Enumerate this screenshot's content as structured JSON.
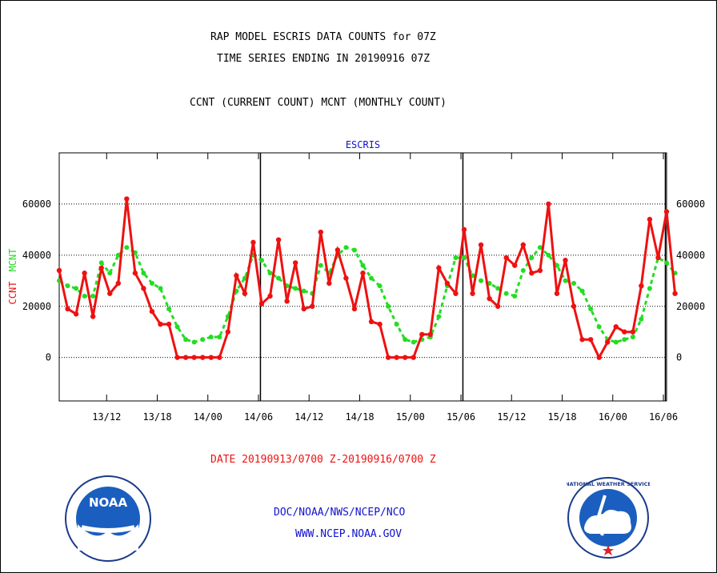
{
  "header": {
    "title_line1": "RAP MODEL ESCRIS DATA COUNTS for 07Z",
    "title_line2": "TIME SERIES ENDING IN 20190916 07Z",
    "subtitle": "CCNT (CURRENT COUNT) MCNT (MONTHLY COUNT)"
  },
  "footer": {
    "date_range": "DATE 20190913/0700 Z-20190916/0700 Z",
    "org_line": "DOC/NOAA/NWS/NCEP/NCO",
    "website": "WWW.NCEP.NOAA.GOV",
    "noaa_logo_text": "NOAA",
    "nws_logo_text": "NATIONAL WEATHER SERVICE"
  },
  "colors": {
    "ccnt": "#ee1111",
    "mcnt": "#22dd22",
    "title_blue": "#1111cc",
    "grid": "#000000"
  },
  "chart_data": {
    "type": "line",
    "title": "ESCRIS",
    "ylabel_ccnt": "CCNT",
    "ylabel_mcnt": "MCNT",
    "ylim": [
      -17000,
      80000
    ],
    "yticks": [
      0,
      20000,
      40000,
      60000
    ],
    "ytick_labels": [
      "0",
      "20000",
      "40000",
      "60000"
    ],
    "xlim": [
      0,
      72
    ],
    "xticks": [
      6,
      12,
      18,
      24,
      30,
      36,
      42,
      48,
      54,
      60,
      66,
      72
    ],
    "xtick_labels": [
      "13/12",
      "13/18",
      "14/00",
      "14/06",
      "14/12",
      "14/18",
      "15/00",
      "15/06",
      "15/12",
      "15/18",
      "16/00",
      "16/06"
    ],
    "day_boundaries": [
      23,
      47,
      71
    ],
    "x_note": "hours since 20190913/0700 Z",
    "series": [
      {
        "name": "CCNT",
        "values": [
          34000,
          19000,
          17000,
          33000,
          16000,
          35000,
          25000,
          29000,
          62000,
          33000,
          27000,
          18000,
          13000,
          13000,
          0,
          0,
          0,
          0,
          0,
          0,
          10000,
          32000,
          25000,
          45000,
          21000,
          24000,
          46000,
          22000,
          37000,
          19000,
          20000,
          49000,
          29000,
          42000,
          31000,
          19000,
          33000,
          14000,
          13000,
          0,
          0,
          0,
          0,
          9000,
          9000,
          35000,
          29000,
          25000,
          50000,
          25000,
          44000,
          23000,
          20000,
          39000,
          36000,
          44000,
          33000,
          34000,
          60000,
          25000,
          38000,
          20000,
          7000,
          7000,
          0,
          6000,
          12000,
          10000,
          10000,
          28000,
          54000,
          39000,
          57000,
          25000
        ]
      },
      {
        "name": "MCNT",
        "values": [
          30000,
          28000,
          27000,
          24000,
          24000,
          37000,
          33000,
          40000,
          43000,
          41000,
          33000,
          29000,
          27000,
          19000,
          12000,
          7000,
          6000,
          7000,
          8000,
          8000,
          16000,
          26000,
          31000,
          40000,
          38000,
          33000,
          31000,
          28000,
          27000,
          26000,
          25000,
          36000,
          33000,
          40000,
          43000,
          42000,
          36000,
          31000,
          28000,
          20000,
          13000,
          7000,
          6000,
          7000,
          8000,
          16000,
          28000,
          39000,
          39000,
          32000,
          30000,
          29000,
          27000,
          25000,
          24000,
          34000,
          39000,
          43000,
          40000,
          36000,
          30000,
          29000,
          26000,
          19000,
          12000,
          7000,
          6000,
          7000,
          8000,
          15000,
          27000,
          39000,
          37000,
          33000
        ]
      }
    ]
  }
}
